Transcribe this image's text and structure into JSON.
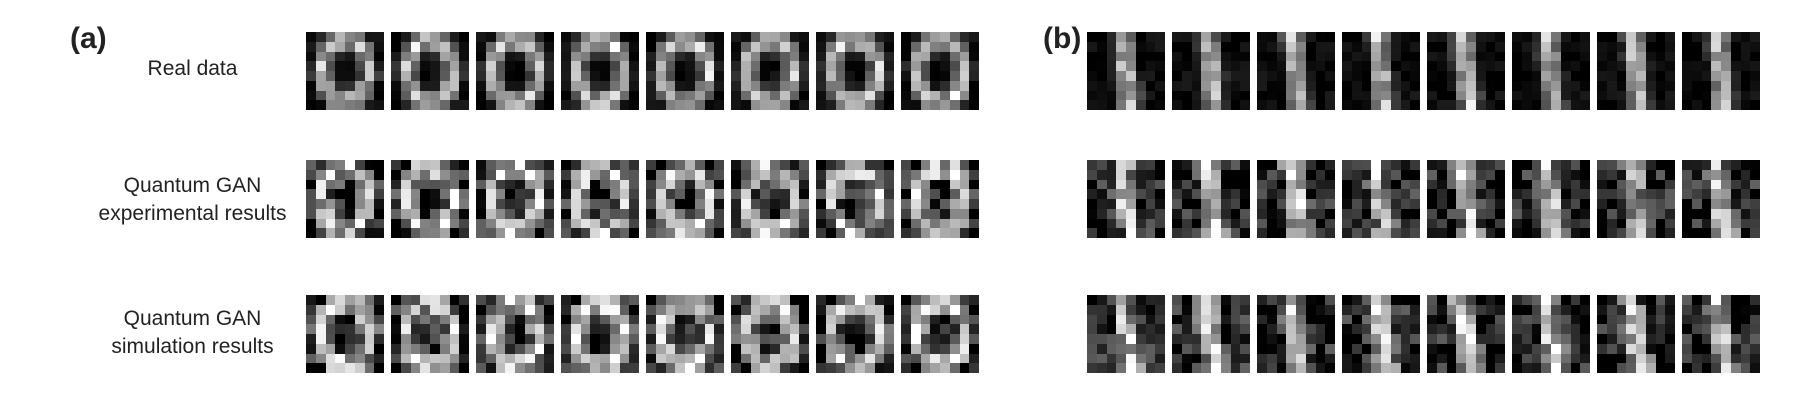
{
  "panels": [
    {
      "label": "(a)"
    },
    {
      "label": "(b)"
    }
  ],
  "row_labels": [
    {
      "line1": "Real data",
      "line2": ""
    },
    {
      "line1": "Quantum GAN",
      "line2": "experimental results"
    },
    {
      "line1": "Quantum GAN",
      "line2": "simulation results"
    }
  ],
  "grid": {
    "rows": 3,
    "columns_per_panel": 8,
    "pixels_per_side": 8
  },
  "digits": {
    "panel_a": "0",
    "panel_b": "1"
  },
  "colors": {
    "background": "#ffffff",
    "tile_background": "#000000",
    "pixel_max": "#ffffff"
  }
}
